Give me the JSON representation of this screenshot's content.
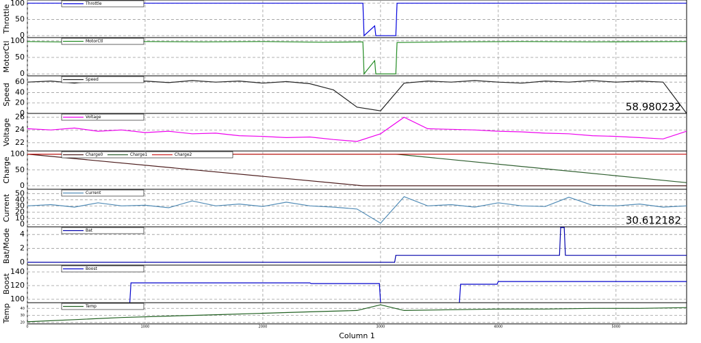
{
  "chart_data": [
    {
      "type": "line",
      "ylabel": "Throttle",
      "xlim": [
        0,
        5600
      ],
      "xticks": [
        0,
        1000,
        2000,
        3000,
        4000,
        5000
      ],
      "ylim": [
        -6,
        110
      ],
      "yticks": [
        0,
        50,
        100
      ],
      "x": [
        0,
        2850,
        2860,
        2950,
        2960,
        3130,
        3140,
        5600
      ],
      "series": [
        {
          "name": "Throttle",
          "color": "#0000dd",
          "values": [
            100,
            100,
            0,
            30,
            0,
            0,
            100,
            100
          ]
        }
      ]
    },
    {
      "type": "line",
      "ylabel": "MotorCtl",
      "xlim": [
        0,
        5600
      ],
      "xticks": [
        0,
        1000,
        2000,
        3000,
        4000,
        5000
      ],
      "ylim": [
        -6,
        110
      ],
      "yticks": [
        0,
        50,
        100
      ],
      "x": [
        0,
        500,
        1000,
        1500,
        2000,
        2500,
        2850,
        2860,
        2950,
        2960,
        3130,
        3140,
        3600,
        4200,
        4800,
        5600
      ],
      "series": [
        {
          "name": "MotorCtl",
          "color": "#228b22",
          "values": [
            98,
            96,
            98,
            97,
            98,
            96,
            97,
            0,
            40,
            0,
            0,
            95,
            97,
            98,
            97,
            98
          ]
        }
      ]
    },
    {
      "type": "line",
      "ylabel": "Speed",
      "xlim": [
        0,
        5600
      ],
      "xticks": [
        0,
        1000,
        2000,
        3000,
        4000,
        5000
      ],
      "ylim": [
        0,
        72
      ],
      "yticks": [
        0,
        20,
        40,
        60
      ],
      "annotation": "58.980232",
      "x": [
        0,
        200,
        400,
        600,
        800,
        1000,
        1200,
        1400,
        1600,
        1800,
        2000,
        2200,
        2400,
        2600,
        2800,
        3000,
        3200,
        3400,
        3600,
        3800,
        4000,
        4200,
        4400,
        4600,
        4800,
        5000,
        5200,
        5400,
        5600
      ],
      "series": [
        {
          "name": "Speed",
          "color": "#222222",
          "values": [
            60,
            62,
            58,
            63,
            60,
            62,
            59,
            63,
            60,
            62,
            58,
            61,
            57,
            45,
            12,
            5,
            58,
            62,
            60,
            63,
            60,
            58,
            62,
            60,
            63,
            60,
            62,
            60,
            0
          ]
        }
      ]
    },
    {
      "type": "line",
      "ylabel": "Voltage",
      "xlim": [
        0,
        5600
      ],
      "xticks": [
        0,
        1000,
        2000,
        3000,
        4000,
        5000
      ],
      "ylim": [
        20.7,
        26.6
      ],
      "yticks": [
        22,
        24,
        26
      ],
      "x": [
        0,
        200,
        400,
        600,
        800,
        1000,
        1200,
        1400,
        1600,
        1800,
        2000,
        2200,
        2400,
        2600,
        2800,
        3000,
        3200,
        3400,
        3600,
        3800,
        4000,
        4200,
        4400,
        4600,
        4800,
        5000,
        5200,
        5400,
        5600
      ],
      "series": [
        {
          "name": "Voltage",
          "color": "#ee00ee",
          "values": [
            24.2,
            24,
            24.3,
            23.8,
            24,
            23.6,
            23.8,
            23.4,
            23.5,
            23.1,
            23,
            22.8,
            22.9,
            22.5,
            22.2,
            23.4,
            26,
            24.2,
            24.1,
            24,
            23.8,
            23.7,
            23.5,
            23.4,
            23.1,
            23,
            22.8,
            22.6,
            23.8
          ]
        }
      ]
    },
    {
      "type": "line",
      "ylabel": "Charge",
      "xlim": [
        0,
        5600
      ],
      "xticks": [
        0,
        1000,
        2000,
        3000,
        4000,
        5000
      ],
      "ylim": [
        -11,
        110
      ],
      "yticks": [
        0,
        50,
        100
      ],
      "x": [
        0,
        2850,
        3130,
        5600
      ],
      "series": [
        {
          "name": "Charge0",
          "color": "#4a1a1a",
          "values": [
            100,
            0,
            0,
            0
          ]
        },
        {
          "name": "Charge1",
          "color": "#2e5e2e",
          "values": [
            100,
            100,
            100,
            10
          ]
        },
        {
          "name": "Charge2",
          "color": "#cc2222",
          "values": [
            100,
            100,
            100,
            100
          ]
        }
      ]
    },
    {
      "type": "line",
      "ylabel": "Current",
      "xlim": [
        0,
        5600
      ],
      "xticks": [
        0,
        1000,
        2000,
        3000,
        4000,
        5000
      ],
      "ylim": [
        -4,
        57
      ],
      "yticks": [
        0,
        10,
        20,
        30,
        40,
        50
      ],
      "annotation": "30.612182",
      "x": [
        0,
        200,
        400,
        600,
        800,
        1000,
        1200,
        1400,
        1600,
        1800,
        2000,
        2200,
        2400,
        2600,
        2800,
        3000,
        3200,
        3400,
        3600,
        3800,
        4000,
        4200,
        4400,
        4600,
        4800,
        5000,
        5200,
        5400,
        5600
      ],
      "series": [
        {
          "name": "Current",
          "color": "#4f8ab5",
          "values": [
            30,
            32,
            28,
            35,
            30,
            31,
            27,
            38,
            30,
            33,
            29,
            36,
            30,
            28,
            25,
            2,
            45,
            30,
            32,
            28,
            35,
            30,
            29,
            44,
            31,
            30,
            33,
            28,
            30
          ]
        }
      ]
    },
    {
      "type": "line",
      "ylabel": "Bat/Mode",
      "xlim": [
        0,
        5600
      ],
      "xticks": [
        0,
        1000,
        2000,
        3000,
        4000,
        5000
      ],
      "ylim": [
        -0.4,
        5.1
      ],
      "yticks": [
        0,
        2,
        4
      ],
      "x": [
        0,
        3120,
        3130,
        4520,
        4530,
        4560,
        4570,
        5600
      ],
      "series": [
        {
          "name": "Bat",
          "color": "#0000aa",
          "values": [
            0,
            0,
            1,
            1,
            5,
            5,
            1,
            1
          ]
        }
      ]
    },
    {
      "type": "line",
      "ylabel": "Boost",
      "xlim": [
        0,
        5600
      ],
      "xticks": [
        0,
        1000,
        2000,
        3000,
        4000,
        5000
      ],
      "ylim": [
        95,
        150
      ],
      "yticks": [
        100,
        120,
        140
      ],
      "x": [
        870,
        880,
        2400,
        2410,
        2990,
        3000,
        3010,
        3670,
        3680,
        3990,
        4000,
        5600
      ],
      "series": [
        {
          "name": "Boost",
          "color": "#0000cc",
          "values": [
            95,
            124,
            124,
            123,
            123,
            95,
            null,
            95,
            122,
            122,
            126,
            126
          ]
        }
      ]
    },
    {
      "type": "line",
      "ylabel": "Temp",
      "xlabel": "Column 1",
      "xlim": [
        0,
        5600
      ],
      "xticks": [
        0,
        1000,
        2000,
        3000,
        4000,
        5000
      ],
      "ylim": [
        18,
        48
      ],
      "yticks": [
        20,
        30,
        40
      ],
      "x": [
        0,
        400,
        800,
        1200,
        1600,
        2000,
        2400,
        2800,
        3000,
        3200,
        3600,
        4000,
        4400,
        4800,
        5200,
        5600
      ],
      "series": [
        {
          "name": "Temp",
          "color": "#1f5f1f",
          "values": [
            21,
            24,
            27,
            29,
            31,
            33,
            35,
            37,
            45,
            37,
            38,
            39,
            39,
            40,
            40,
            41
          ]
        }
      ]
    }
  ]
}
